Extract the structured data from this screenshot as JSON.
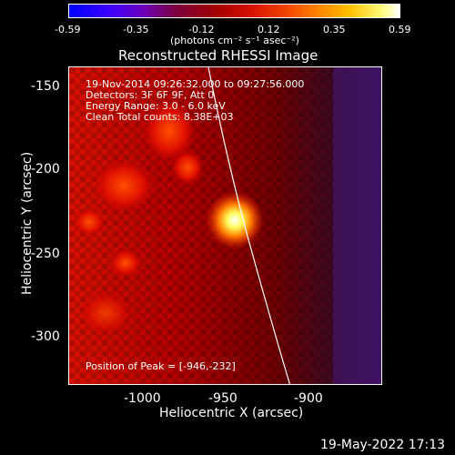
{
  "colorbar": {
    "ticks": [
      "-0.59",
      "-0.35",
      "-0.12",
      "0.12",
      "0.35",
      "0.59"
    ],
    "units": "(photons cm⁻² s⁻¹ asec⁻²)"
  },
  "plot": {
    "title": "Reconstructed RHESSI Image",
    "xlabel": "Heliocentric X (arcsec)",
    "ylabel": "Heliocentric Y (arcsec)",
    "xticks": [
      "-1000",
      "-950",
      "-900"
    ],
    "yticks": [
      "-150",
      "-200",
      "-250",
      "-300"
    ],
    "info": [
      "19-Nov-2014 09:26:32.000 to 09:27:56.000",
      "Detectors: 3F 6F 9F, Att 0",
      "Energy Range: 3.0 - 6.0 keV",
      "Clean     Total counts: 8.38E+03"
    ],
    "peak": "Position of Peak = [-946,-232]"
  },
  "footer": {
    "timestamp": "19-May-2022 17:13"
  }
}
